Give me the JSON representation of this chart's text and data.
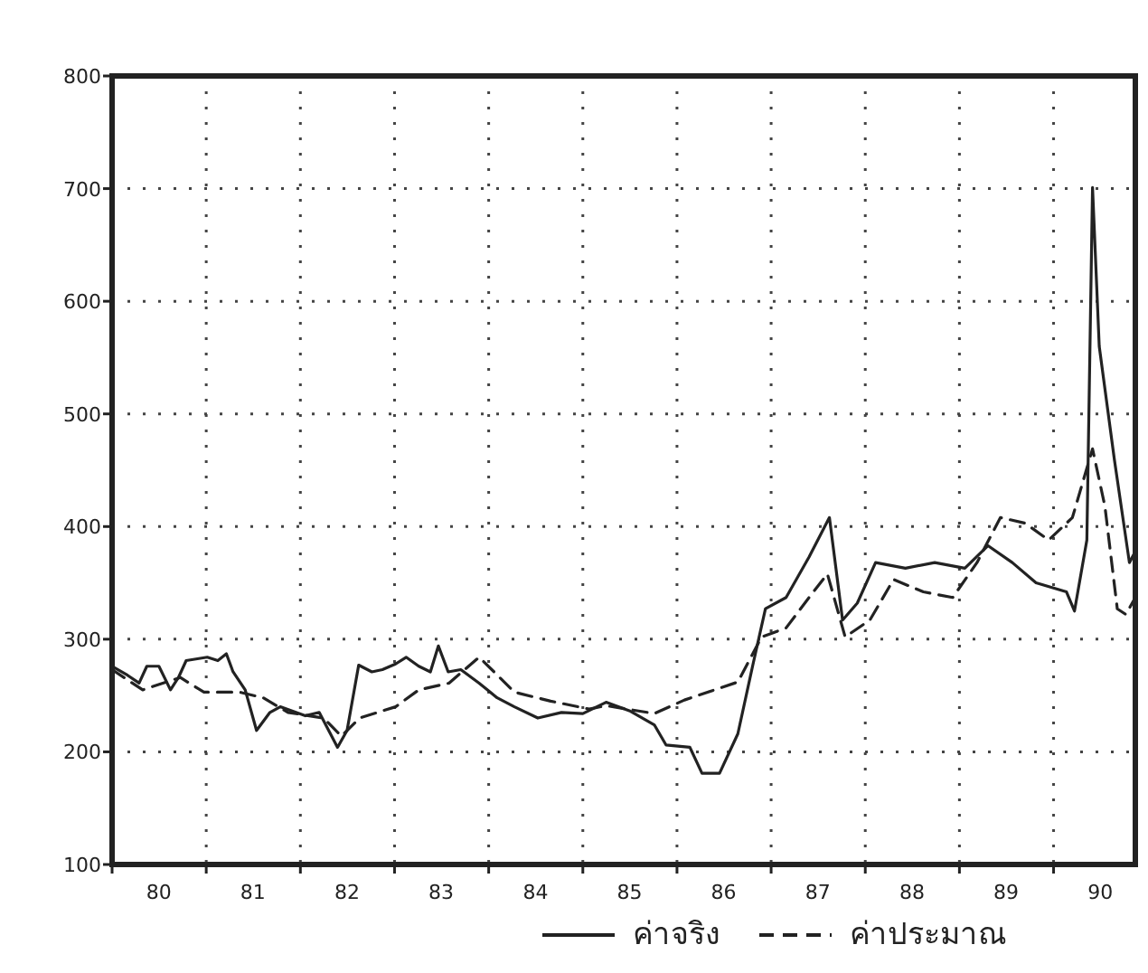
{
  "chart_data": {
    "type": "line",
    "xlim": [
      "1980-01-01",
      "1990-11-14"
    ],
    "ylim": [
      100,
      800
    ],
    "yticks": [
      100,
      200,
      300,
      400,
      500,
      600,
      700,
      800
    ],
    "xticks": [
      {
        "value": "1980-01-01",
        "label": null
      },
      {
        "value": "1981-01-01",
        "label": null
      },
      {
        "value": "1982-01-01",
        "label": null
      },
      {
        "value": "1983-01-01",
        "label": null
      },
      {
        "value": "1984-01-01",
        "label": null
      },
      {
        "value": "1985-01-01",
        "label": null
      },
      {
        "value": "1986-01-01",
        "label": null
      },
      {
        "value": "1987-01-01",
        "label": null
      },
      {
        "value": "1988-01-01",
        "label": null
      },
      {
        "value": "1989-01-01",
        "label": null
      },
      {
        "value": "1990-01-01",
        "label": null
      },
      {
        "value": "1980-07-01",
        "label": "80"
      },
      {
        "value": "1981-07-01",
        "label": "81"
      },
      {
        "value": "1982-07-01",
        "label": "82"
      },
      {
        "value": "1983-07-01",
        "label": "83"
      },
      {
        "value": "1984-07-01",
        "label": "84"
      },
      {
        "value": "1985-07-01",
        "label": "85"
      },
      {
        "value": "1986-07-01",
        "label": "86"
      },
      {
        "value": "1987-07-01",
        "label": "87"
      },
      {
        "value": "1988-07-01",
        "label": "88"
      },
      {
        "value": "1989-07-01",
        "label": "89"
      },
      {
        "value": "1990-07-01",
        "label": "90"
      }
    ],
    "grid": true,
    "legend": "bottom",
    "marker": "none",
    "series": [
      {
        "name": "ค่าจริง",
        "color": "#222222",
        "line_style": "solid",
        "x": [
          "1980-01-01",
          "1980-03-01",
          "1980-04-15",
          "1980-05-15",
          "1980-07-01",
          "1980-08-15",
          "1980-09-15",
          "1980-10-15",
          "1981-01-05",
          "1981-02-15",
          "1981-03-20",
          "1981-04-15",
          "1981-06-01",
          "1981-07-15",
          "1981-09-05",
          "1981-10-15",
          "1982-01-20",
          "1982-03-15",
          "1982-05-25",
          "1982-07-01",
          "1982-08-15",
          "1982-10-05",
          "1982-11-15",
          "1983-01-05",
          "1983-02-15",
          "1983-04-05",
          "1983-05-20",
          "1983-06-20",
          "1983-07-28",
          "1983-09-15",
          "1983-11-25",
          "1984-02-03",
          "1984-04-10",
          "1984-07-10",
          "1984-10-10",
          "1985-01-01",
          "1985-04-01",
          "1985-07-05",
          "1985-10-05",
          "1985-11-20",
          "1986-02-20",
          "1986-04-08",
          "1986-06-15",
          "1986-08-25",
          "1986-10-22",
          "1986-12-10",
          "1987-02-28",
          "1987-05-28",
          "1987-08-15",
          "1987-10-05",
          "1987-12-01",
          "1988-02-10",
          "1988-06-05",
          "1988-09-27",
          "1989-01-22",
          "1989-04-22",
          "1989-07-25",
          "1989-10-25",
          "1990-02-20",
          "1990-03-23",
          "1990-05-10",
          "1990-06-01",
          "1990-06-27",
          "1990-08-25",
          "1990-10-22",
          "1990-11-14"
        ],
        "values": [
          276,
          268,
          261,
          276,
          276,
          255,
          266,
          281,
          284,
          281,
          287,
          271,
          255,
          219,
          235,
          240,
          232,
          235,
          204,
          219,
          277,
          271,
          273,
          278,
          284,
          276,
          271,
          294,
          271,
          273,
          261,
          248,
          240,
          230,
          235,
          234,
          244,
          236,
          224,
          206,
          204,
          181,
          181,
          216,
          277,
          327,
          337,
          373,
          408,
          317,
          332,
          368,
          363,
          368,
          363,
          383,
          368,
          350,
          342,
          325,
          388,
          701,
          560,
          459,
          368,
          378
        ]
      },
      {
        "name": "ค่าประมาณ",
        "color": "#222222",
        "line_style": "dashed",
        "x": [
          "1980-01-01",
          "1980-04-29",
          "1980-09-22",
          "1980-12-23",
          "1981-05-10",
          "1981-08-10",
          "1981-11-14",
          "1982-04-01",
          "1982-06-09",
          "1982-08-19",
          "1983-01-05",
          "1983-04-05",
          "1983-07-31",
          "1983-11-25",
          "1984-01-22",
          "1984-04-10",
          "1984-08-29",
          "1985-01-26",
          "1985-04-01",
          "1985-10-05",
          "1986-01-30",
          "1986-08-25",
          "1986-11-25",
          "1987-02-28",
          "1987-05-28",
          "1987-08-07",
          "1987-10-15",
          "1988-01-19",
          "1988-04-20",
          "1988-08-14",
          "1988-12-06",
          "1989-03-10",
          "1989-06-09",
          "1989-09-13",
          "1989-12-13",
          "1990-03-15",
          "1990-06-01",
          "1990-07-19",
          "1990-09-05",
          "1990-10-08",
          "1990-11-14"
        ],
        "values": [
          273,
          255,
          266,
          253,
          253,
          248,
          235,
          230,
          214,
          230,
          240,
          255,
          261,
          284,
          271,
          253,
          245,
          238,
          241,
          234,
          246,
          262,
          302,
          310,
          337,
          358,
          302,
          317,
          353,
          342,
          337,
          368,
          408,
          403,
          388,
          408,
          469,
          418,
          327,
          322,
          337
        ]
      }
    ]
  }
}
